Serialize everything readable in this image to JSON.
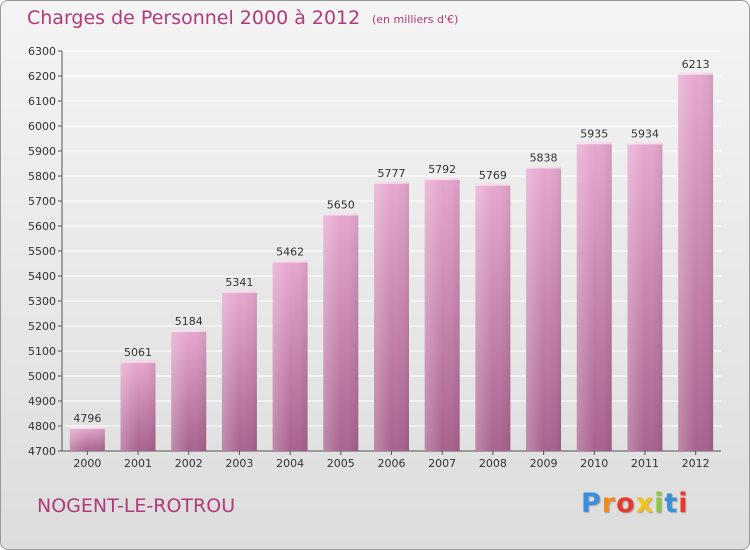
{
  "chart_data": {
    "type": "bar",
    "title": "Charges de Personnel 2000 à 2012",
    "subtitle": "(en milliers d'€)",
    "categories": [
      "2000",
      "2001",
      "2002",
      "2003",
      "2004",
      "2005",
      "2006",
      "2007",
      "2008",
      "2009",
      "2010",
      "2011",
      "2012"
    ],
    "values": [
      4796,
      5061,
      5184,
      5341,
      5462,
      5650,
      5777,
      5792,
      5769,
      5838,
      5935,
      5934,
      6213
    ],
    "ylim": [
      4700,
      6300
    ],
    "ytick_step": 100,
    "xlabel": "",
    "ylabel": "",
    "grid": true
  },
  "city": "NOGENT-LE-ROTROU",
  "logo": [
    "P",
    "r",
    "o",
    "x",
    "i",
    "t",
    "i"
  ],
  "colors": {
    "accent": "#b03a7a",
    "bar_top": "#e7a8cf",
    "bar_bottom": "#a8628e",
    "grid": "#ffffff"
  }
}
